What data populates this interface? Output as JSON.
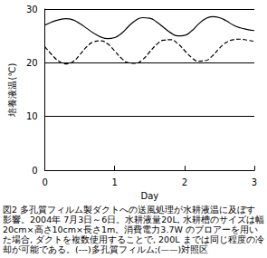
{
  "chart_data": {
    "type": "line",
    "x_label": "Day",
    "y_label": "培養液温(℃)",
    "caption": "図2 多孔質フィルム製ダクトへの送風処理が水耕液温に及ぼす影響。2004年 7月3日～6日。水耕液量20L, 水耕槽のサイズは幅20cm×高さ10cm×長さ1m。消費電力3.7W のブロアーを用いた場合, ダクトを複数使用することで, 200L までは同じ程度の冷却が可能である。(---)多孔質フィルム;(——)対照区",
    "x": [
      0,
      0.1,
      0.2,
      0.3,
      0.4,
      0.5,
      0.6,
      0.7,
      0.8,
      0.9,
      1.0,
      1.1,
      1.2,
      1.3,
      1.4,
      1.5,
      1.6,
      1.7,
      1.8,
      1.9,
      2.0,
      2.1,
      2.2,
      2.3,
      2.4,
      2.5,
      2.6,
      2.7,
      2.8,
      2.9,
      3.0
    ],
    "series": [
      {
        "name": "対照区",
        "color": "#000000",
        "line_style": "solid",
        "marker": "none",
        "values": [
          27,
          27.6,
          28,
          28.2,
          28,
          27.3,
          26.4,
          25.5,
          24.8,
          24.5,
          24.7,
          25.5,
          26.8,
          27.9,
          28.4,
          28.3,
          27.6,
          26.6,
          25.6,
          25,
          25.1,
          25.9,
          27.2,
          28.2,
          28.6,
          28.4,
          27.8,
          27,
          26.5,
          26.2,
          26
        ]
      },
      {
        "name": "多孔質フィルム",
        "color": "#000000",
        "line_style": "dashed",
        "marker": "none",
        "values": [
          23,
          21.5,
          20.3,
          19.8,
          20.2,
          21.5,
          23,
          23.9,
          24.1,
          23.5,
          22.2,
          20.8,
          20,
          19.9,
          20.6,
          22,
          23.4,
          24.2,
          24.3,
          23.6,
          22.3,
          21,
          20.3,
          20.4,
          21.3,
          22.7,
          23.8,
          24.3,
          24.4,
          24.2,
          24
        ]
      }
    ],
    "xlim": [
      0,
      3
    ],
    "xticks": [
      0,
      1,
      2,
      3
    ],
    "ylim": [
      0,
      30
    ],
    "yticks": [
      0,
      10,
      20,
      30
    ],
    "grid": true
  }
}
